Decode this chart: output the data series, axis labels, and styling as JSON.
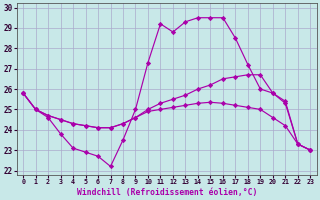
{
  "title": "",
  "xlabel": "Windchill (Refroidissement éolien,°C)",
  "ylabel": "",
  "background_color": "#c8e8e8",
  "line_color": "#aa00aa",
  "grid_color": "#aaaacc",
  "xlim": [
    -0.5,
    23.5
  ],
  "ylim": [
    21.8,
    30.2
  ],
  "xticks": [
    0,
    1,
    2,
    3,
    4,
    5,
    6,
    7,
    8,
    9,
    10,
    11,
    12,
    13,
    14,
    15,
    16,
    17,
    18,
    19,
    20,
    21,
    22,
    23
  ],
  "yticks": [
    22,
    23,
    24,
    25,
    26,
    27,
    28,
    29,
    30
  ],
  "line_arch": [
    25.8,
    25.0,
    24.6,
    23.8,
    23.1,
    22.9,
    22.7,
    22.2,
    23.5,
    25.0,
    27.3,
    29.2,
    28.8,
    29.3,
    29.5,
    29.5,
    29.5,
    28.5,
    27.2,
    26.0,
    25.8,
    25.3,
    23.3,
    23.0
  ],
  "line_upper": [
    25.8,
    25.0,
    24.7,
    24.5,
    24.3,
    24.2,
    24.1,
    24.1,
    24.3,
    24.6,
    25.0,
    25.3,
    25.5,
    25.7,
    26.0,
    26.2,
    26.5,
    26.6,
    26.7,
    26.7,
    25.8,
    25.4,
    23.3,
    23.0
  ],
  "line_lower": [
    25.8,
    25.0,
    24.7,
    24.5,
    24.3,
    24.2,
    24.1,
    24.1,
    24.3,
    24.6,
    24.9,
    25.0,
    25.1,
    25.2,
    25.3,
    25.35,
    25.3,
    25.2,
    25.1,
    25.0,
    24.6,
    24.2,
    23.3,
    23.0
  ],
  "marker": "D",
  "markersize": 2.2,
  "linewidth": 0.85
}
